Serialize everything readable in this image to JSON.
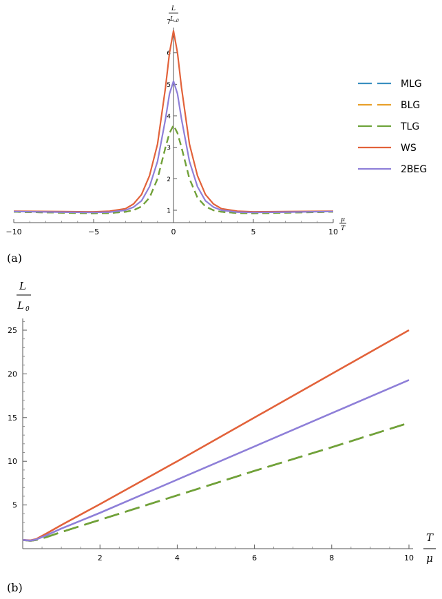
{
  "chart_data": [
    {
      "type": "line",
      "panel_label": "(a)",
      "xlabel": {
        "num": "μ",
        "den": "T"
      },
      "ylabel": {
        "num": "L",
        "den": "L",
        "den_sub": "0"
      },
      "xlim": [
        -10,
        10
      ],
      "ylim": [
        0.55,
        7
      ],
      "xticks": [
        -10,
        -5,
        0,
        5,
        10
      ],
      "xtick_labels": [
        "−10",
        "−5",
        "0",
        "5",
        "10"
      ],
      "yticks": [
        1,
        2,
        3,
        4,
        5,
        6,
        7
      ],
      "legend": {
        "position": "right"
      },
      "series": [
        {
          "name": "MLG",
          "color": "#3a8fc0",
          "dash": true,
          "x": [
            -10,
            -7,
            -5,
            -4,
            -3,
            -2.5,
            -2,
            -1.5,
            -1,
            -0.5,
            -0.25,
            0,
            0.25,
            0.5,
            1,
            1.5,
            2,
            2.5,
            3,
            4,
            5,
            7,
            10
          ],
          "y": [
            0.95,
            0.92,
            0.9,
            0.91,
            0.95,
            1.0,
            1.12,
            1.4,
            2.0,
            3.0,
            3.45,
            3.7,
            3.45,
            3.0,
            2.0,
            1.4,
            1.12,
            1.0,
            0.95,
            0.91,
            0.9,
            0.92,
            0.95
          ]
        },
        {
          "name": "BLG",
          "color": "#e8a02a",
          "dash": true,
          "x": [
            -10,
            -7,
            -5,
            -4,
            -3,
            -2.5,
            -2,
            -1.5,
            -1,
            -0.5,
            -0.25,
            0,
            0.25,
            0.5,
            1,
            1.5,
            2,
            2.5,
            3,
            4,
            5,
            7,
            10
          ],
          "y": [
            0.95,
            0.92,
            0.9,
            0.91,
            0.95,
            1.0,
            1.12,
            1.4,
            2.0,
            3.0,
            3.45,
            3.7,
            3.45,
            3.0,
            2.0,
            1.4,
            1.12,
            1.0,
            0.95,
            0.91,
            0.9,
            0.92,
            0.95
          ]
        },
        {
          "name": "TLG",
          "color": "#6ea33a",
          "dash": true,
          "x": [
            -10,
            -7,
            -5,
            -4,
            -3,
            -2.5,
            -2,
            -1.5,
            -1,
            -0.5,
            -0.25,
            0,
            0.25,
            0.5,
            1,
            1.5,
            2,
            2.5,
            3,
            4,
            5,
            7,
            10
          ],
          "y": [
            0.95,
            0.92,
            0.9,
            0.91,
            0.95,
            1.0,
            1.12,
            1.4,
            2.0,
            3.0,
            3.45,
            3.7,
            3.45,
            3.0,
            2.0,
            1.4,
            1.12,
            1.0,
            0.95,
            0.91,
            0.9,
            0.92,
            0.95
          ]
        },
        {
          "name": "WS",
          "color": "#e2623a",
          "dash": false,
          "x": [
            -10,
            -7,
            -5,
            -4,
            -3,
            -2.5,
            -2,
            -1.5,
            -1,
            -0.5,
            -0.25,
            0,
            0.25,
            0.5,
            1,
            1.5,
            2,
            2.5,
            3,
            4,
            5,
            7,
            10
          ],
          "y": [
            0.97,
            0.96,
            0.95,
            0.97,
            1.05,
            1.2,
            1.5,
            2.1,
            3.1,
            4.9,
            6.0,
            6.7,
            6.0,
            4.9,
            3.1,
            2.1,
            1.5,
            1.2,
            1.05,
            0.97,
            0.95,
            0.96,
            0.97
          ]
        },
        {
          "name": "2BEG",
          "color": "#8e7fd8",
          "dash": false,
          "x": [
            -10,
            -7,
            -5,
            -4,
            -3,
            -2.5,
            -2,
            -1.5,
            -1,
            -0.5,
            -0.25,
            0,
            0.25,
            0.5,
            1,
            1.5,
            2,
            2.5,
            3,
            4,
            5,
            7,
            10
          ],
          "y": [
            0.96,
            0.94,
            0.93,
            0.94,
            1.0,
            1.1,
            1.3,
            1.75,
            2.55,
            3.9,
            4.7,
            5.1,
            4.7,
            3.9,
            2.55,
            1.75,
            1.3,
            1.1,
            1.0,
            0.94,
            0.93,
            0.94,
            0.96
          ]
        }
      ]
    },
    {
      "type": "line",
      "panel_label": "(b)",
      "xlabel": {
        "num": "T",
        "den": "μ"
      },
      "ylabel": {
        "num": "L",
        "den": "L",
        "den_sub": "0"
      },
      "xlim": [
        0,
        10
      ],
      "ylim": [
        0,
        26.5
      ],
      "xticks": [
        2,
        4,
        6,
        8,
        10
      ],
      "xtick_labels": [
        "2",
        "4",
        "6",
        "8",
        "10"
      ],
      "yticks": [
        5,
        10,
        15,
        20,
        25
      ],
      "ytick_labels": [
        "5",
        "10",
        "15",
        "20",
        "25"
      ],
      "series": [
        {
          "name": "MLG",
          "color": "#3a8fc0",
          "dash": true,
          "x": [
            0,
            0.2,
            0.35,
            0.6,
            1,
            2,
            4,
            6,
            8,
            10
          ],
          "y": [
            1.0,
            0.9,
            1.0,
            1.3,
            1.9,
            3.3,
            6.1,
            8.9,
            11.6,
            14.4
          ]
        },
        {
          "name": "BLG",
          "color": "#e8a02a",
          "dash": true,
          "x": [
            0,
            0.2,
            0.35,
            0.6,
            1,
            2,
            4,
            6,
            8,
            10
          ],
          "y": [
            1.0,
            0.9,
            1.0,
            1.3,
            1.9,
            3.3,
            6.1,
            8.9,
            11.6,
            14.4
          ]
        },
        {
          "name": "TLG",
          "color": "#6ea33a",
          "dash": true,
          "x": [
            0,
            0.2,
            0.35,
            0.6,
            1,
            2,
            4,
            6,
            8,
            10
          ],
          "y": [
            1.0,
            0.9,
            1.0,
            1.3,
            1.9,
            3.3,
            6.1,
            8.9,
            11.6,
            14.4
          ]
        },
        {
          "name": "WS",
          "color": "#e2623a",
          "dash": false,
          "x": [
            0,
            0.2,
            0.35,
            0.6,
            1,
            2,
            4,
            6,
            8,
            10
          ],
          "y": [
            1.0,
            0.95,
            1.1,
            1.7,
            2.7,
            5.1,
            10.0,
            15.0,
            20.0,
            25.0
          ]
        },
        {
          "name": "2BEG",
          "color": "#8e7fd8",
          "dash": false,
          "x": [
            0,
            0.2,
            0.35,
            0.6,
            1,
            2,
            4,
            6,
            8,
            10
          ],
          "y": [
            1.0,
            0.92,
            1.05,
            1.5,
            2.3,
            4.1,
            7.9,
            11.7,
            15.5,
            19.3
          ]
        }
      ]
    }
  ]
}
